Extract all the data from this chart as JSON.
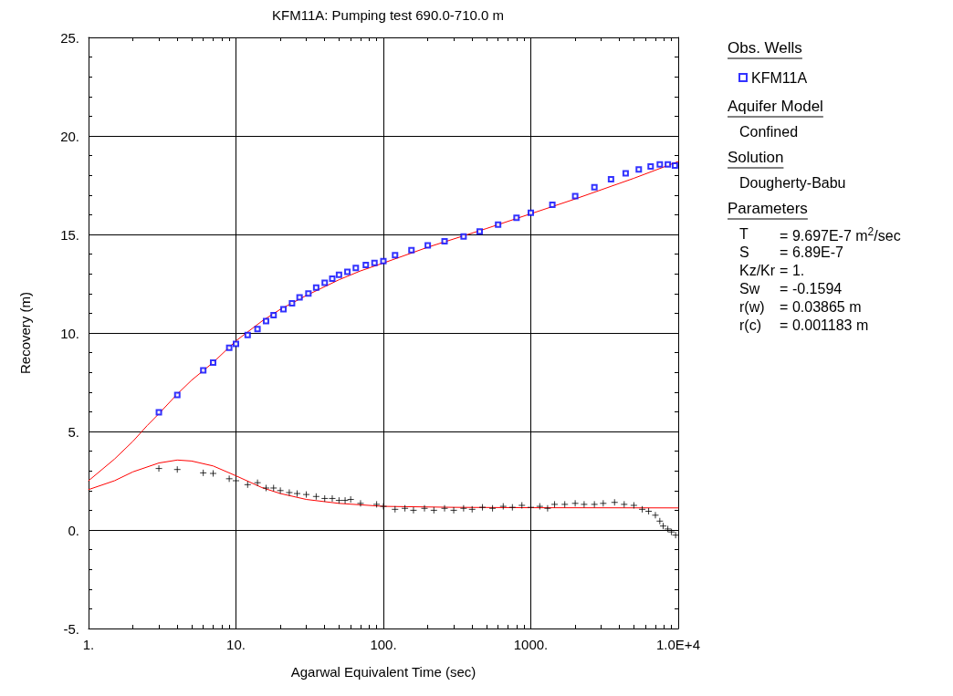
{
  "chart_data": {
    "type": "scatter",
    "title": "KFM11A: Pumping test 690.0-710.0 m",
    "xlabel": "Agarwal Equivalent Time (sec)",
    "ylabel": "Recovery (m)",
    "log": "x",
    "grid": true,
    "legend": "right",
    "legend_title": "Obs. Wells",
    "xlim": [
      1,
      10000
    ],
    "xticks": [
      {
        "value": 1,
        "label": "1."
      },
      {
        "value": 10,
        "label": "10."
      },
      {
        "value": 100,
        "label": "100."
      },
      {
        "value": 1000,
        "label": "1000."
      },
      {
        "value": 10000,
        "label": "1.0E+4"
      }
    ],
    "ylim": [
      -5,
      25
    ],
    "yticks": [
      {
        "value": -5,
        "label": "-5."
      },
      {
        "value": 0,
        "label": "0."
      },
      {
        "value": 5,
        "label": "5."
      },
      {
        "value": 10,
        "label": "10."
      },
      {
        "value": 15,
        "label": "15."
      },
      {
        "value": 20,
        "label": "20."
      },
      {
        "value": 25,
        "label": "25."
      }
    ],
    "series": [
      {
        "type": "line",
        "marker": "none",
        "color": "#ff0000",
        "x": [
          1,
          1.5,
          2,
          2.5,
          3,
          4,
          5,
          7,
          10,
          15,
          20,
          30,
          50,
          70,
          100,
          200,
          500,
          1000,
          2000,
          5000,
          10000
        ],
        "values": [
          2.5,
          3.6,
          4.5,
          5.3,
          5.9,
          6.9,
          7.6,
          8.5,
          9.6,
          10.6,
          11.2,
          11.9,
          12.7,
          13.15,
          13.55,
          14.35,
          15.3,
          16.05,
          16.8,
          17.85,
          18.7
        ]
      },
      {
        "type": "line",
        "marker": "none",
        "color": "#ff0000",
        "x": [
          1,
          1.5,
          2,
          3,
          4,
          5,
          7,
          10,
          15,
          20,
          30,
          50,
          100,
          300,
          1000,
          10000
        ],
        "values": [
          2.05,
          2.5,
          2.95,
          3.4,
          3.55,
          3.5,
          3.25,
          2.75,
          2.15,
          1.85,
          1.55,
          1.35,
          1.2,
          1.15,
          1.13,
          1.12
        ]
      },
      {
        "name": "KFM11A",
        "type": "scatter",
        "marker": "square",
        "color": "#0000ff",
        "x": [
          3,
          4,
          6,
          7,
          9,
          10,
          12,
          14,
          16,
          18,
          21,
          24,
          27,
          31,
          35,
          40,
          45,
          50,
          57,
          65,
          76,
          87,
          100,
          120,
          155,
          200,
          260,
          350,
          450,
          600,
          800,
          1000,
          1400,
          2000,
          2700,
          3500,
          4400,
          5400,
          6500,
          7500,
          8500,
          9500
        ],
        "values": [
          5.97,
          6.85,
          8.1,
          8.5,
          9.25,
          9.45,
          9.9,
          10.2,
          10.6,
          10.9,
          11.2,
          11.5,
          11.8,
          12.0,
          12.3,
          12.55,
          12.75,
          12.95,
          13.1,
          13.3,
          13.45,
          13.55,
          13.65,
          13.95,
          14.2,
          14.45,
          14.65,
          14.9,
          15.15,
          15.5,
          15.85,
          16.1,
          16.5,
          16.95,
          17.4,
          17.8,
          18.1,
          18.3,
          18.45,
          18.55,
          18.55,
          18.5
        ]
      },
      {
        "type": "scatter",
        "marker": "cross",
        "color": "#000000",
        "x": [
          3,
          4,
          6,
          7,
          9,
          10,
          12,
          14,
          16,
          18,
          20,
          23,
          26,
          30,
          35,
          40,
          45,
          50,
          55,
          60,
          70,
          90,
          100,
          120,
          140,
          160,
          190,
          220,
          260,
          300,
          350,
          400,
          470,
          550,
          650,
          750,
          870,
          1000,
          1150,
          1300,
          1450,
          1700,
          2000,
          2300,
          2700,
          3100,
          3700,
          4300,
          5000,
          5700,
          6300,
          7000,
          7500,
          7900,
          8500,
          9000,
          9600
        ],
        "values": [
          3.12,
          3.07,
          2.9,
          2.87,
          2.6,
          2.5,
          2.3,
          2.4,
          2.13,
          2.13,
          2.0,
          1.9,
          1.85,
          1.8,
          1.7,
          1.6,
          1.6,
          1.5,
          1.5,
          1.55,
          1.35,
          1.3,
          1.2,
          1.05,
          1.1,
          1.0,
          1.1,
          1.0,
          1.1,
          1.0,
          1.1,
          1.05,
          1.15,
          1.1,
          1.2,
          1.15,
          1.25,
          1.15,
          1.2,
          1.1,
          1.3,
          1.3,
          1.35,
          1.3,
          1.3,
          1.35,
          1.4,
          1.3,
          1.25,
          1.05,
          0.95,
          0.75,
          0.45,
          0.2,
          0.05,
          -0.1,
          -0.26
        ]
      }
    ],
    "annotations": [
      "Aquifer Model\nConfined",
      "Solution\nDougherty-Babu",
      "Parameters\nT = 9.697E-7 m$^{2}$/sec\nS = 6.89E-7\nKz/Kr = 1.\nSw = -0.1594\nr(w) = 0.03865 m\nr(c) = 0.001183 m"
    ]
  }
}
